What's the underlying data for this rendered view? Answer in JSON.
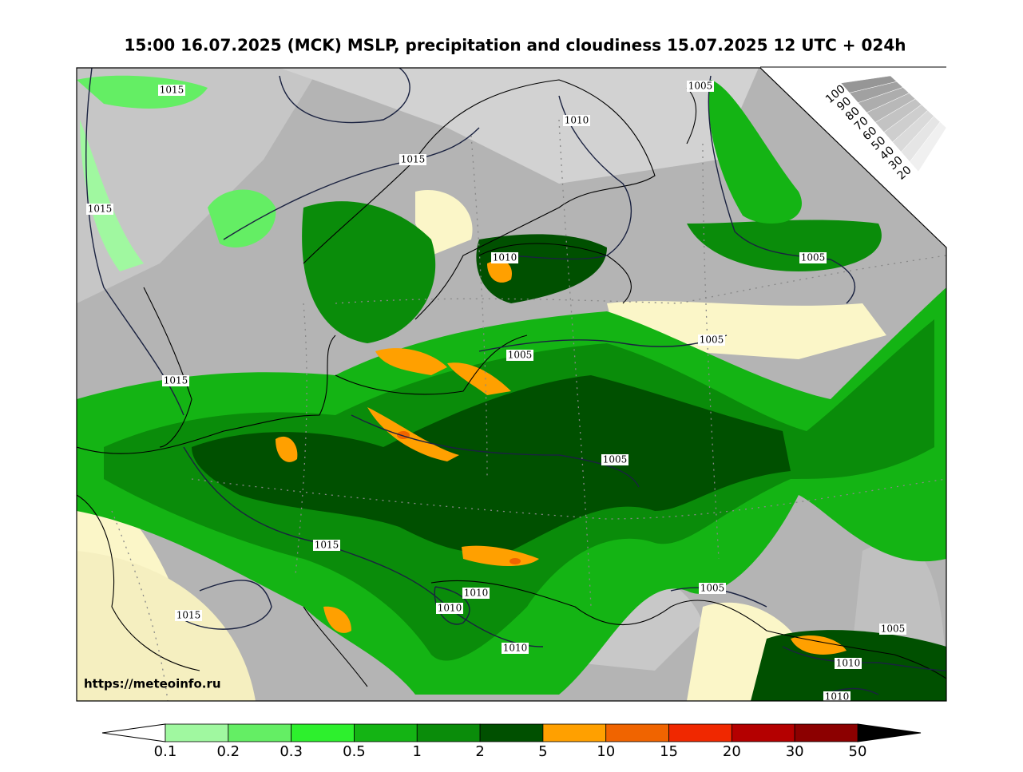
{
  "title": "15:00 16.07.2025 (MCK) MSLP, precipitation and cloudiness 15.07.2025 12 UTC + 024h",
  "url": "https://meteoinfo.ru",
  "isobar_labels": [
    "1015",
    "1010",
    "1015",
    "1015",
    "1005",
    "1010",
    "1005",
    "1005",
    "1005",
    "1015",
    "1005",
    "1015",
    "1010",
    "1010",
    "1015",
    "1005",
    "1005",
    "1010",
    "1010",
    "1010"
  ],
  "cloudiness_scale": [
    100,
    90,
    80,
    70,
    60,
    50,
    40,
    30,
    20
  ],
  "precipitation_scale": {
    "boundaries": [
      0.1,
      0.2,
      0.3,
      0.5,
      1,
      2,
      5,
      10,
      15,
      20,
      30,
      50
    ],
    "colors": [
      "#a0f8a0",
      "#64ee64",
      "#2df02d",
      "#14b414",
      "#0a8c0a",
      "#005000",
      "#ffa000",
      "#f06400",
      "#f02800",
      "#b40000",
      "#8c0000"
    ]
  }
}
